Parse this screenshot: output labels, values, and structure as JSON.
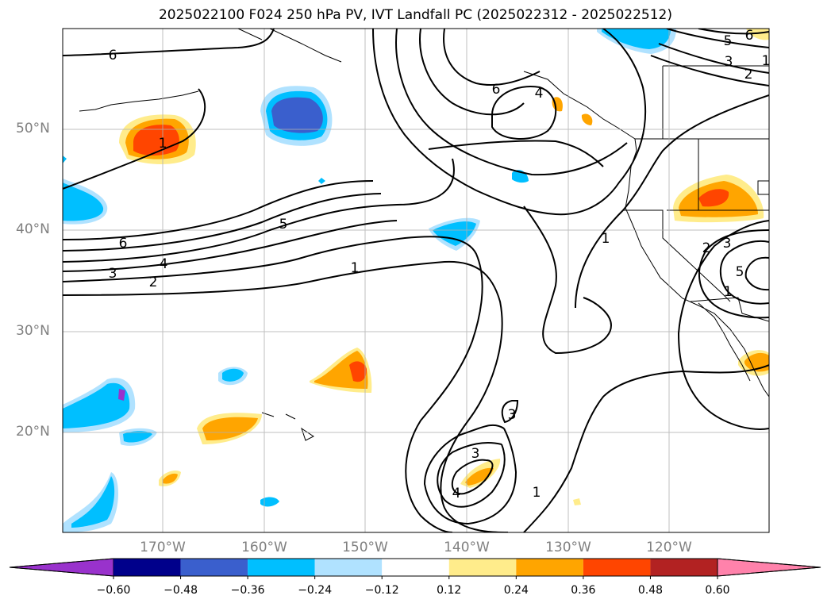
{
  "title": "2025022100 F024 250 hPa PV, IVT Landfall PC (2025022312 - 2025022512)",
  "lat_labels": [
    "50°N",
    "40°N",
    "30°N",
    "20°N"
  ],
  "lon_labels": [
    "170°W",
    "160°W",
    "150°W",
    "140°W",
    "130°W",
    "120°W"
  ],
  "colorbar": {
    "ticks": [
      "−0.60",
      "−0.48",
      "−0.36",
      "−0.24",
      "−0.12",
      "0.12",
      "0.24",
      "0.36",
      "0.48",
      "0.60"
    ],
    "colors": [
      "#9932cc",
      "#00008b",
      "#3a5fcd",
      "#00bfff",
      "#b0e2ff",
      "#ffffff",
      "#ffec8b",
      "#ffa500",
      "#ff4500",
      "#b22222",
      "#ff82ab"
    ]
  },
  "contour_labels": [
    "6",
    "6",
    "5",
    "4",
    "3",
    "2",
    "1",
    "6",
    "5",
    "6",
    "3",
    "2",
    "4",
    "1",
    "1",
    "1",
    "2",
    "3",
    "5",
    "3",
    "3",
    "4",
    "1",
    "1"
  ]
}
